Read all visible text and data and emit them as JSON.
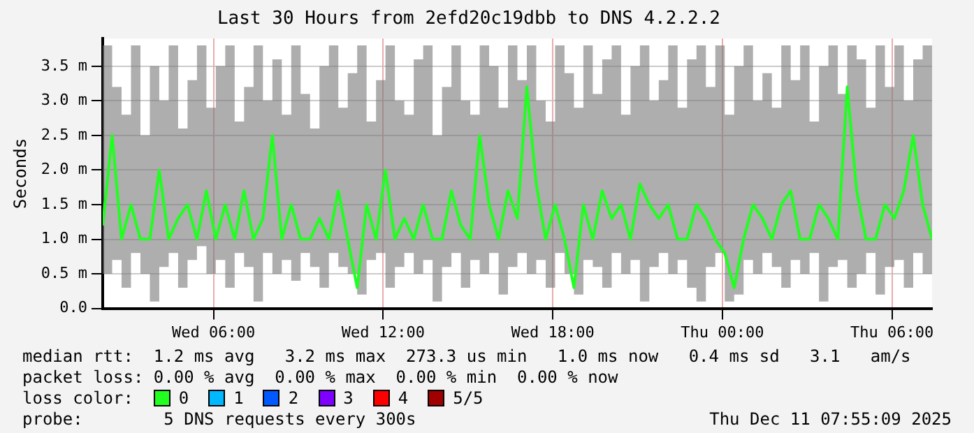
{
  "chart_data": {
    "type": "line",
    "title": "Last 30 Hours from 2efd20c19dbb to DNS 4.2.2.2",
    "ylabel": "Seconds",
    "x": [
      "2025-12-10T02:05",
      "2025-12-10T02:25",
      "2025-12-10T02:45",
      "2025-12-10T03:05",
      "2025-12-10T03:25",
      "2025-12-10T03:45",
      "2025-12-10T04:05",
      "2025-12-10T04:25",
      "2025-12-10T04:45",
      "2025-12-10T05:05",
      "2025-12-10T05:25",
      "2025-12-10T05:45",
      "2025-12-10T06:05",
      "2025-12-10T06:25",
      "2025-12-10T06:45",
      "2025-12-10T07:05",
      "2025-12-10T07:25",
      "2025-12-10T07:45",
      "2025-12-10T08:05",
      "2025-12-10T08:25",
      "2025-12-10T08:45",
      "2025-12-10T09:05",
      "2025-12-10T09:25",
      "2025-12-10T09:45",
      "2025-12-10T10:05",
      "2025-12-10T10:25",
      "2025-12-10T10:45",
      "2025-12-10T11:05",
      "2025-12-10T11:25",
      "2025-12-10T11:45",
      "2025-12-10T12:05",
      "2025-12-10T12:25",
      "2025-12-10T12:45",
      "2025-12-10T13:05",
      "2025-12-10T13:25",
      "2025-12-10T13:45",
      "2025-12-10T14:05",
      "2025-12-10T14:25",
      "2025-12-10T14:45",
      "2025-12-10T15:05",
      "2025-12-10T15:25",
      "2025-12-10T15:45",
      "2025-12-10T16:05",
      "2025-12-10T16:25",
      "2025-12-10T16:45",
      "2025-12-10T17:05",
      "2025-12-10T17:25",
      "2025-12-10T17:45",
      "2025-12-10T18:05",
      "2025-12-10T18:25",
      "2025-12-10T18:45",
      "2025-12-10T19:05",
      "2025-12-10T19:25",
      "2025-12-10T19:45",
      "2025-12-10T20:05",
      "2025-12-10T20:25",
      "2025-12-10T20:45",
      "2025-12-10T21:05",
      "2025-12-10T21:25",
      "2025-12-10T21:45",
      "2025-12-10T22:05",
      "2025-12-10T22:25",
      "2025-12-10T22:45",
      "2025-12-10T23:05",
      "2025-12-10T23:25",
      "2025-12-10T23:45",
      "2025-12-11T00:05",
      "2025-12-11T00:25",
      "2025-12-11T00:45",
      "2025-12-11T01:05",
      "2025-12-11T01:25",
      "2025-12-11T01:45",
      "2025-12-11T02:05",
      "2025-12-11T02:25",
      "2025-12-11T02:45",
      "2025-12-11T03:05",
      "2025-12-11T03:25",
      "2025-12-11T03:45",
      "2025-12-11T04:05",
      "2025-12-11T04:25",
      "2025-12-11T04:45",
      "2025-12-11T05:05",
      "2025-12-11T05:25",
      "2025-12-11T05:45",
      "2025-12-11T06:05",
      "2025-12-11T06:25",
      "2025-12-11T06:45",
      "2025-12-11T07:05",
      "2025-12-11T07:25"
    ],
    "series": [
      {
        "name": "0",
        "color": "#20ff20",
        "values": [
          1.2,
          2.5,
          1.0,
          1.5,
          1.0,
          1.0,
          2.0,
          1.0,
          1.3,
          1.5,
          1.0,
          1.7,
          1.0,
          1.5,
          1.0,
          1.7,
          1.0,
          1.3,
          2.5,
          1.0,
          1.5,
          1.0,
          1.0,
          1.3,
          1.0,
          1.7,
          1.0,
          0.3,
          1.5,
          1.0,
          2.0,
          1.0,
          1.3,
          1.0,
          1.5,
          1.0,
          1.0,
          1.7,
          1.2,
          1.0,
          2.5,
          1.5,
          1.0,
          1.7,
          1.3,
          3.2,
          1.8,
          1.0,
          1.5,
          1.0,
          0.3,
          1.5,
          1.0,
          1.7,
          1.3,
          1.5,
          1.0,
          1.8,
          1.5,
          1.3,
          1.5,
          1.0,
          1.0,
          1.5,
          1.3,
          1.0,
          0.8,
          0.3,
          1.0,
          1.5,
          1.3,
          1.0,
          1.5,
          1.7,
          1.0,
          1.0,
          1.5,
          1.3,
          1.0,
          3.2,
          1.7,
          1.0,
          1.0,
          1.5,
          1.3,
          1.7,
          2.5,
          1.5,
          1.0
        ],
        "lower": [
          0.5,
          0.7,
          0.3,
          0.8,
          0.5,
          0.1,
          0.6,
          0.8,
          0.3,
          0.7,
          0.9,
          0.5,
          0.7,
          0.3,
          0.8,
          0.6,
          0.1,
          0.8,
          0.5,
          0.7,
          0.4,
          0.8,
          0.6,
          0.3,
          0.8,
          0.6,
          0.5,
          0.2,
          0.7,
          0.8,
          0.3,
          0.6,
          0.8,
          0.5,
          0.7,
          0.1,
          0.6,
          0.8,
          0.3,
          0.7,
          0.5,
          0.8,
          0.2,
          0.6,
          0.8,
          0.5,
          0.7,
          0.3,
          0.8,
          0.5,
          0.2,
          0.7,
          0.6,
          0.3,
          0.8,
          0.5,
          0.7,
          0.1,
          0.6,
          0.8,
          0.5,
          0.7,
          0.3,
          0.1,
          0.6,
          0.8,
          0.1,
          0.2,
          0.7,
          0.5,
          0.8,
          0.6,
          0.3,
          0.7,
          0.5,
          0.8,
          0.1,
          0.6,
          0.7,
          0.3,
          0.5,
          0.8,
          0.2,
          0.6,
          0.7,
          0.3,
          0.8,
          0.5,
          0.8
        ],
        "upper": [
          3.8,
          3.2,
          2.8,
          3.8,
          2.5,
          3.5,
          3.0,
          3.8,
          2.6,
          3.3,
          3.8,
          2.9,
          3.5,
          3.8,
          2.7,
          3.2,
          3.8,
          3.0,
          3.6,
          2.8,
          3.8,
          3.1,
          2.6,
          3.5,
          3.8,
          2.9,
          3.4,
          3.8,
          2.7,
          3.3,
          3.8,
          3.0,
          2.8,
          3.6,
          3.8,
          2.5,
          3.2,
          3.8,
          3.0,
          2.8,
          3.8,
          3.5,
          2.9,
          3.8,
          3.3,
          3.8,
          3.0,
          2.7,
          3.8,
          3.4,
          2.9,
          3.8,
          3.1,
          3.6,
          3.8,
          2.8,
          3.5,
          3.8,
          3.0,
          3.3,
          3.8,
          2.9,
          3.6,
          3.8,
          3.2,
          3.8,
          2.8,
          3.5,
          3.8,
          3.0,
          3.4,
          2.9,
          3.8,
          3.3,
          3.8,
          2.7,
          3.5,
          3.8,
          3.1,
          3.8,
          3.6,
          2.9,
          3.8,
          3.2,
          3.8,
          3.0,
          3.6,
          3.8,
          3.1
        ]
      },
      {
        "name": "1",
        "color": "#00b8ff",
        "values": [
          null,
          null,
          null,
          null,
          null,
          null,
          null,
          null,
          null,
          null,
          null,
          null,
          null,
          null,
          null,
          null,
          null,
          null,
          null,
          null,
          null,
          null,
          null,
          null,
          null,
          null,
          null,
          null,
          null,
          null,
          null,
          null,
          null,
          null,
          null,
          null,
          null,
          null,
          null,
          null,
          null,
          null,
          null,
          null,
          null,
          null,
          null,
          null,
          null,
          null,
          null,
          null,
          null,
          null,
          null,
          null,
          null,
          null,
          null,
          null,
          null,
          null,
          null,
          null,
          null,
          null,
          null,
          null,
          null,
          null,
          null,
          null,
          null,
          null,
          null,
          null,
          null,
          null,
          null,
          null,
          null,
          null,
          null,
          null,
          null,
          null,
          null,
          null,
          null
        ]
      },
      {
        "name": "2",
        "color": "#0059ff",
        "values": [
          null,
          null,
          null,
          null,
          null,
          null,
          null,
          null,
          null,
          null,
          null,
          null,
          null,
          null,
          null,
          null,
          null,
          null,
          null,
          null,
          null,
          null,
          null,
          null,
          null,
          null,
          null,
          null,
          null,
          null,
          null,
          null,
          null,
          null,
          null,
          null,
          null,
          null,
          null,
          null,
          null,
          null,
          null,
          null,
          null,
          null,
          null,
          null,
          null,
          null,
          null,
          null,
          null,
          null,
          null,
          null,
          null,
          null,
          null,
          null,
          null,
          null,
          null,
          null,
          null,
          null,
          null,
          null,
          null,
          null,
          null,
          null,
          null,
          null,
          null,
          null,
          null,
          null,
          null,
          null,
          null,
          null,
          null,
          null,
          null,
          null,
          null,
          null,
          null
        ]
      },
      {
        "name": "3",
        "color": "#7e00ff",
        "values": [
          null,
          null,
          null,
          null,
          null,
          null,
          null,
          null,
          null,
          null,
          null,
          null,
          null,
          null,
          null,
          null,
          null,
          null,
          null,
          null,
          null,
          null,
          null,
          null,
          null,
          null,
          null,
          null,
          null,
          null,
          null,
          null,
          null,
          null,
          null,
          null,
          null,
          null,
          null,
          null,
          null,
          null,
          null,
          null,
          null,
          null,
          null,
          null,
          null,
          null,
          null,
          null,
          null,
          null,
          null,
          null,
          null,
          null,
          null,
          null,
          null,
          null,
          null,
          null,
          null,
          null,
          null,
          null,
          null,
          null,
          null,
          null,
          null,
          null,
          null,
          null,
          null,
          null,
          null,
          null,
          null,
          null,
          null,
          null,
          null,
          null,
          null,
          null,
          null
        ]
      },
      {
        "name": "4",
        "color": "#ff0000",
        "values": [
          null,
          null,
          null,
          null,
          null,
          null,
          null,
          null,
          null,
          null,
          null,
          null,
          null,
          null,
          null,
          null,
          null,
          null,
          null,
          null,
          null,
          null,
          null,
          null,
          null,
          null,
          null,
          null,
          null,
          null,
          null,
          null,
          null,
          null,
          null,
          null,
          null,
          null,
          null,
          null,
          null,
          null,
          null,
          null,
          null,
          null,
          null,
          null,
          null,
          null,
          null,
          null,
          null,
          null,
          null,
          null,
          null,
          null,
          null,
          null,
          null,
          null,
          null,
          null,
          null,
          null,
          null,
          null,
          null,
          null,
          null,
          null,
          null,
          null,
          null,
          null,
          null,
          null,
          null,
          null,
          null,
          null,
          null,
          null,
          null,
          null,
          null,
          null,
          null
        ]
      },
      {
        "name": "5/5",
        "color": "#a10000",
        "values": [
          null,
          null,
          null,
          null,
          null,
          null,
          null,
          null,
          null,
          null,
          null,
          null,
          null,
          null,
          null,
          null,
          null,
          null,
          null,
          null,
          null,
          null,
          null,
          null,
          null,
          null,
          null,
          null,
          null,
          null,
          null,
          null,
          null,
          null,
          null,
          null,
          null,
          null,
          null,
          null,
          null,
          null,
          null,
          null,
          null,
          null,
          null,
          null,
          null,
          null,
          null,
          null,
          null,
          null,
          null,
          null,
          null,
          null,
          null,
          null,
          null,
          null,
          null,
          null,
          null,
          null,
          null,
          null,
          null,
          null,
          null,
          null,
          null,
          null,
          null,
          null,
          null,
          null,
          null,
          null,
          null,
          null,
          null,
          null,
          null,
          null,
          null,
          null,
          null
        ]
      }
    ],
    "xlim": [
      "2025-12-10T02:05",
      "2025-12-11T07:25"
    ],
    "xticks": [
      {
        "value": "2025-12-10T06:00",
        "label": "Wed 06:00"
      },
      {
        "value": "2025-12-10T12:00",
        "label": "Wed 12:00"
      },
      {
        "value": "2025-12-10T18:00",
        "label": "Wed 18:00"
      },
      {
        "value": "2025-12-11T00:00",
        "label": "Thu 00:00"
      },
      {
        "value": "2025-12-11T06:00",
        "label": "Thu 06:00"
      }
    ],
    "ylim": [
      0,
      3.9
    ],
    "yticks": [
      {
        "value": 0,
        "label": "0.0"
      },
      {
        "value": 0.5,
        "label": "0.5 m"
      },
      {
        "value": 1.0,
        "label": "1.0 m"
      },
      {
        "value": 1.5,
        "label": "1.5 m"
      },
      {
        "value": 2.0,
        "label": "2.0 m"
      },
      {
        "value": 2.5,
        "label": "2.5 m"
      },
      {
        "value": 3.0,
        "label": "3.0 m"
      },
      {
        "value": 3.5,
        "label": "3.5 m"
      }
    ],
    "grid": true,
    "legend": "bottom",
    "legend_title": "loss color:",
    "marker": "none",
    "line_style": "solid",
    "annotations": [
      "median rtt:  1.2 ms avg   3.2 ms max  273.3 us min   1.0 ms now   0.4 ms sd   3.1   am/s",
      "packet loss: 0.00 % avg  0.00 % max  0.00 % min  0.00 % now",
      "probe:        5 DNS requests every 300s",
      "Thu Dec 11 07:55:09 2025"
    ]
  }
}
